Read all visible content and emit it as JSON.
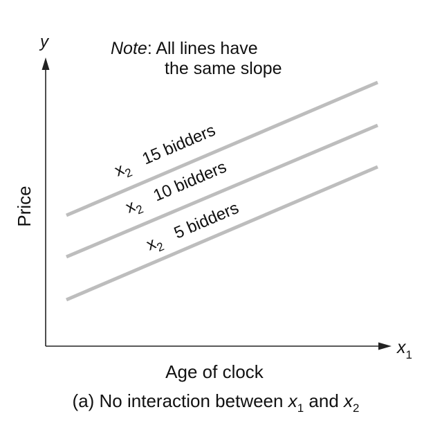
{
  "note": {
    "prefix": "Note",
    "line1_rest": ": All lines have",
    "line2": "the same slope"
  },
  "axes": {
    "y_label": "y",
    "y_title": "Price",
    "x_label_base": "x",
    "x_label_sub": "1",
    "x_title": "Age of clock"
  },
  "lines": [
    {
      "var_base": "x",
      "var_sub": "2",
      "label": "15 bidders"
    },
    {
      "var_base": "x",
      "var_sub": "2",
      "label": "10 bidders"
    },
    {
      "var_base": "x",
      "var_sub": "2",
      "label": "5 bidders"
    }
  ],
  "caption": {
    "part1": "(a) No interaction between ",
    "v1_base": "x",
    "v1_sub": "1",
    "part2": " and ",
    "v2_base": "x",
    "v2_sub": "2"
  },
  "colors": {
    "line": "#bdbdbd",
    "axis": "#222222",
    "text": "#111111"
  }
}
